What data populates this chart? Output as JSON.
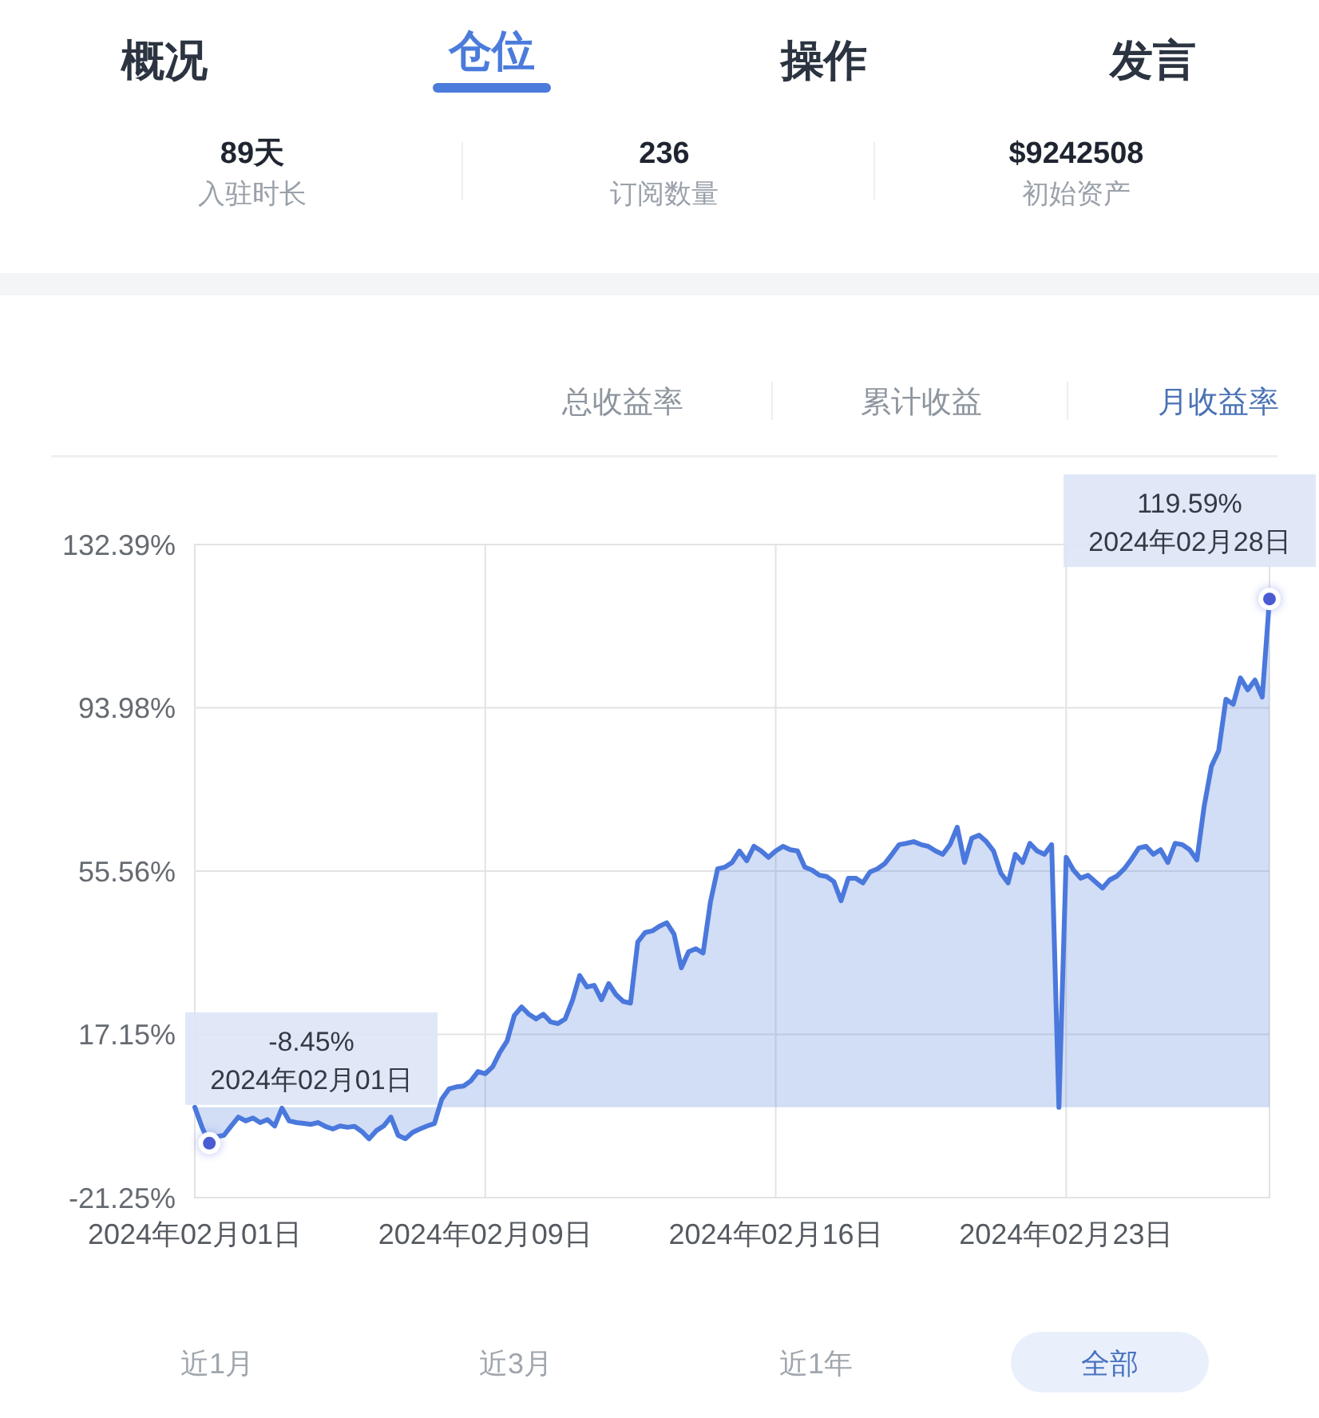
{
  "chart_data": {
    "type": "area",
    "categories": [
      "2024年02月01日",
      null,
      null,
      null,
      null,
      null,
      null,
      null,
      null,
      null,
      null,
      null,
      null,
      null,
      null,
      null,
      null,
      null,
      null,
      null,
      null,
      null,
      null,
      null,
      null,
      null,
      null,
      null,
      null,
      null,
      null,
      null,
      null,
      null,
      null,
      null,
      null,
      null,
      null,
      null,
      "2024年02月09日",
      null,
      null,
      null,
      null,
      null,
      null,
      null,
      null,
      null,
      null,
      null,
      null,
      null,
      null,
      null,
      null,
      null,
      null,
      null,
      null,
      null,
      null,
      null,
      null,
      null,
      null,
      null,
      null,
      null,
      null,
      null,
      null,
      null,
      null,
      null,
      null,
      null,
      null,
      null,
      "2024年02月16日",
      null,
      null,
      null,
      null,
      null,
      null,
      null,
      null,
      null,
      null,
      null,
      null,
      null,
      null,
      null,
      null,
      null,
      null,
      null,
      null,
      null,
      null,
      null,
      null,
      null,
      null,
      null,
      null,
      null,
      null,
      null,
      null,
      null,
      null,
      null,
      null,
      null,
      null,
      null,
      "2024年02月23日",
      null,
      null,
      null,
      null,
      null,
      null,
      null,
      null,
      null,
      null,
      null,
      null,
      null,
      null,
      null,
      null,
      null,
      null,
      null,
      null,
      null,
      null,
      null,
      null,
      null,
      null,
      null,
      null
    ],
    "series": [
      {
        "color": "#4a78dc",
        "values": [
          0,
          -4.7,
          -8.45,
          -6.9,
          -6.6,
          -4.4,
          -2.3,
          -3.2,
          -2.5,
          -3.6,
          -2.9,
          -4.4,
          -0.2,
          -3.2,
          -3.6,
          -3.8,
          -4.0,
          -3.6,
          -4.5,
          -5.1,
          -4.4,
          -4.7,
          -4.5,
          -5.7,
          -7.4,
          -5.5,
          -4.4,
          -2.3,
          -6.6,
          -7.4,
          -5.9,
          -5.1,
          -4.4,
          -3.8,
          1.9,
          4.3,
          4.8,
          5.0,
          6.2,
          8.4,
          7.9,
          9.5,
          12.9,
          15.6,
          21.6,
          23.6,
          21.9,
          20.8,
          21.9,
          20.1,
          19.7,
          20.8,
          25.1,
          31.0,
          28.3,
          28.7,
          25.3,
          29.1,
          26.5,
          24.9,
          24.5,
          38.9,
          41.1,
          41.5,
          42.6,
          43.4,
          40.7,
          32.8,
          36.6,
          37.3,
          36.3,
          48.2,
          56.1,
          56.5,
          57.6,
          60.3,
          58.0,
          61.4,
          60.3,
          58.8,
          60.3,
          61.4,
          60.6,
          60.3,
          56.5,
          55.8,
          54.6,
          54.3,
          53.1,
          48.6,
          53.9,
          53.9,
          52.8,
          55.4,
          56.1,
          57.3,
          59.5,
          61.8,
          62.1,
          62.5,
          61.8,
          61.4,
          60.3,
          59.5,
          61.8,
          65.9,
          57.6,
          63.3,
          64.0,
          62.5,
          60.3,
          55.1,
          52.8,
          59.5,
          57.6,
          62.1,
          60.3,
          59.5,
          61.8,
          0,
          58.8,
          55.8,
          53.9,
          54.6,
          53.1,
          51.6,
          53.5,
          54.4,
          56.1,
          58.4,
          61.0,
          61.4,
          59.5,
          60.6,
          57.6,
          62.1,
          61.8,
          60.6,
          58.2,
          70.8,
          80.2,
          83.9,
          96.0,
          94.8,
          101.0,
          98.2,
          100.5,
          96.5,
          119.59
        ]
      },
      {
        "type": "scatter",
        "color": "#4a5bd4",
        "values": [
          null,
          null,
          -8.45,
          null,
          null,
          null,
          null,
          null,
          null,
          null,
          null,
          null,
          null,
          null,
          null,
          null,
          null,
          null,
          null,
          null,
          null,
          null,
          null,
          null,
          null,
          null,
          null,
          null,
          null,
          null,
          null,
          null,
          null,
          null,
          null,
          null,
          null,
          null,
          null,
          null,
          null,
          null,
          null,
          null,
          null,
          null,
          null,
          null,
          null,
          null,
          null,
          null,
          null,
          null,
          null,
          null,
          null,
          null,
          null,
          null,
          null,
          null,
          null,
          null,
          null,
          null,
          null,
          null,
          null,
          null,
          null,
          null,
          null,
          null,
          null,
          null,
          null,
          null,
          null,
          null,
          null,
          null,
          null,
          null,
          null,
          null,
          null,
          null,
          null,
          null,
          null,
          null,
          null,
          null,
          null,
          null,
          null,
          null,
          null,
          null,
          null,
          null,
          null,
          null,
          null,
          null,
          null,
          null,
          null,
          null,
          null,
          null,
          null,
          null,
          null,
          null,
          null,
          null,
          null,
          null,
          null,
          null,
          null,
          null,
          null,
          null,
          null,
          null,
          null,
          null,
          null,
          null,
          null,
          null,
          null,
          null,
          null,
          null,
          null,
          null,
          null,
          null,
          null,
          null,
          null,
          null,
          null,
          null,
          119.59
        ],
        "value_labels": [
          null,
          null,
          "-8.45%\n2024年02月01日",
          null,
          null,
          null,
          null,
          null,
          null,
          null,
          null,
          null,
          null,
          null,
          null,
          null,
          null,
          null,
          null,
          null,
          null,
          null,
          null,
          null,
          null,
          null,
          null,
          null,
          null,
          null,
          null,
          null,
          null,
          null,
          null,
          null,
          null,
          null,
          null,
          null,
          null,
          null,
          null,
          null,
          null,
          null,
          null,
          null,
          null,
          null,
          null,
          null,
          null,
          null,
          null,
          null,
          null,
          null,
          null,
          null,
          null,
          null,
          null,
          null,
          null,
          null,
          null,
          null,
          null,
          null,
          null,
          null,
          null,
          null,
          null,
          null,
          null,
          null,
          null,
          null,
          null,
          null,
          null,
          null,
          null,
          null,
          null,
          null,
          null,
          null,
          null,
          null,
          null,
          null,
          null,
          null,
          null,
          null,
          null,
          null,
          null,
          null,
          null,
          null,
          null,
          null,
          null,
          null,
          null,
          null,
          null,
          null,
          null,
          null,
          null,
          null,
          null,
          null,
          null,
          null,
          null,
          null,
          null,
          null,
          null,
          null,
          null,
          null,
          null,
          null,
          null,
          null,
          null,
          null,
          null,
          null,
          null,
          null,
          null,
          null,
          null,
          null,
          null,
          null,
          null,
          null,
          null,
          null,
          "119.59%\n2024年02月28日"
        ]
      }
    ],
    "ylim": [
      -21.25,
      132.39
    ],
    "yticks": [
      {
        "value": 132.39,
        "label": "132.39%"
      },
      {
        "value": 93.98,
        "label": "93.98%"
      },
      {
        "value": 55.56,
        "label": "55.56%"
      },
      {
        "value": 17.15,
        "label": "17.15%"
      },
      {
        "value": -21.25,
        "label": "-21.25%"
      }
    ],
    "grid": true,
    "annotations": [
      "概况",
      "仓位",
      "操作",
      "发言",
      "89天",
      "入驻时长",
      "236",
      "订阅数量",
      "$9242508",
      "初始资产",
      "总收益率",
      "累计收益",
      "月收益率",
      "近1月",
      "近3月",
      "近1年",
      "全部"
    ]
  }
}
